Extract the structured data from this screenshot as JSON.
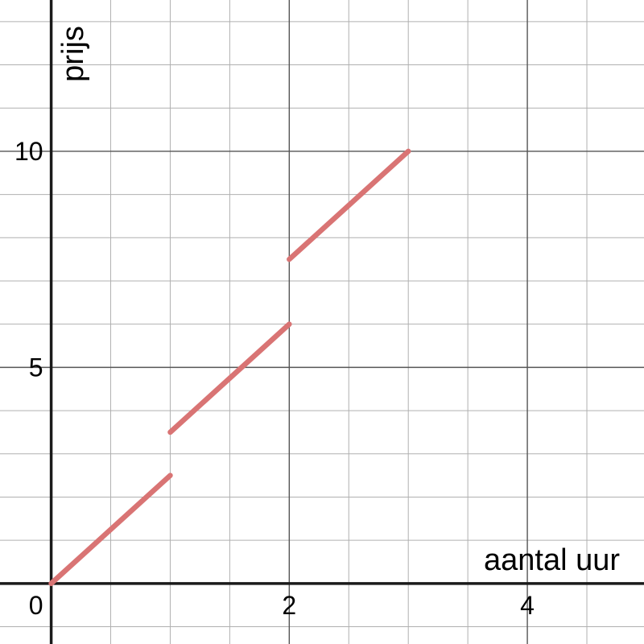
{
  "chart_data": {
    "type": "line",
    "xlabel": "aantal uur",
    "ylabel": "prijs",
    "xlim": [
      -0.43,
      4.98
    ],
    "ylim": [
      -1.4,
      13.5
    ],
    "grid": true,
    "minor_step_x": 0.5,
    "minor_step_y": 1,
    "major_step_x": 2,
    "major_step_y": 5,
    "x_ticks": [
      {
        "value": 0,
        "label": "0"
      },
      {
        "value": 2,
        "label": "2"
      },
      {
        "value": 4,
        "label": "4"
      }
    ],
    "y_ticks": [
      {
        "value": 5,
        "label": "5"
      },
      {
        "value": 10,
        "label": "10"
      }
    ],
    "series_color": "#d97474",
    "segments": [
      {
        "x": [
          0,
          1
        ],
        "y": [
          0,
          2.5
        ]
      },
      {
        "x": [
          1,
          2
        ],
        "y": [
          3.5,
          6
        ]
      },
      {
        "x": [
          2,
          3
        ],
        "y": [
          7.5,
          10
        ]
      }
    ]
  }
}
